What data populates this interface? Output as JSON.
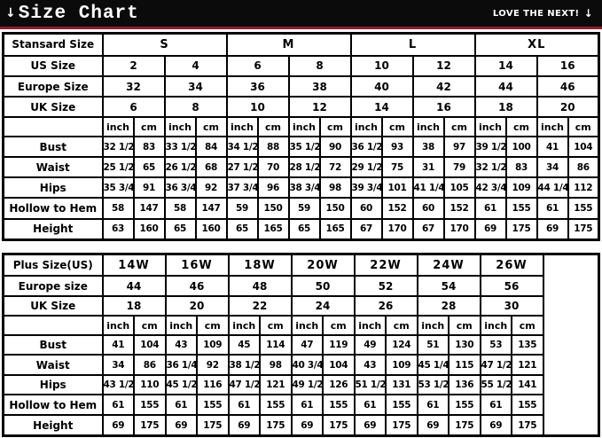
{
  "header": {
    "title": "Size Chart",
    "left_icon": "↓",
    "tagline": "LOVE THE NEXT!",
    "tagline_icon": "↓",
    "bar_color": "#0b0b0b",
    "accent_color": "#8e1c2e"
  },
  "chart_data": [
    {
      "type": "table",
      "name": "standard-size-chart",
      "corner_label": "Stansard Size",
      "size_groups": [
        "S",
        "M",
        "L",
        "XL"
      ],
      "header_rows": [
        {
          "label": "US Size",
          "values": [
            "2",
            "4",
            "6",
            "8",
            "10",
            "12",
            "14",
            "16"
          ]
        },
        {
          "label": "Europe Size",
          "values": [
            "32",
            "34",
            "36",
            "38",
            "40",
            "42",
            "44",
            "46"
          ]
        },
        {
          "label": "UK Size",
          "values": [
            "6",
            "8",
            "10",
            "12",
            "14",
            "16",
            "18",
            "20"
          ]
        }
      ],
      "unit_labels": [
        "inch",
        "cm"
      ],
      "measurement_rows": [
        {
          "label": "Bust",
          "values": [
            "32 1/2",
            "83",
            "33 1/2",
            "84",
            "34 1/2",
            "88",
            "35 1/2",
            "90",
            "36 1/2",
            "93",
            "38",
            "97",
            "39 1/2",
            "100",
            "41",
            "104"
          ]
        },
        {
          "label": "Waist",
          "values": [
            "25 1/2",
            "65",
            "26 1/2",
            "68",
            "27 1/2",
            "70",
            "28 1/2",
            "72",
            "29 1/2",
            "75",
            "31",
            "79",
            "32 1/2",
            "83",
            "34",
            "86"
          ]
        },
        {
          "label": "Hips",
          "values": [
            "35 3/4",
            "91",
            "36 3/4",
            "92",
            "37 3/4",
            "96",
            "38 3/4",
            "98",
            "39 3/4",
            "101",
            "41 1/4",
            "105",
            "42 3/4",
            "109",
            "44 1/4",
            "112"
          ]
        },
        {
          "label": "Hollow to Hem",
          "values": [
            "58",
            "147",
            "58",
            "147",
            "59",
            "150",
            "59",
            "150",
            "60",
            "152",
            "60",
            "152",
            "61",
            "155",
            "61",
            "155"
          ]
        },
        {
          "label": "Height",
          "values": [
            "63",
            "160",
            "65",
            "160",
            "65",
            "165",
            "65",
            "165",
            "67",
            "170",
            "67",
            "170",
            "69",
            "175",
            "69",
            "175"
          ]
        }
      ],
      "has_trailing_empty_column": false
    },
    {
      "type": "table",
      "name": "plus-size-chart",
      "corner_label": "Plus Size(US)",
      "size_groups": [
        "14W",
        "16W",
        "18W",
        "20W",
        "22W",
        "24W",
        "26W"
      ],
      "header_rows": [
        {
          "label": "Europe size",
          "values": [
            "44",
            "46",
            "48",
            "50",
            "52",
            "54",
            "56"
          ]
        },
        {
          "label": "UK Size",
          "values": [
            "18",
            "20",
            "22",
            "24",
            "26",
            "28",
            "30"
          ]
        }
      ],
      "unit_labels": [
        "inch",
        "cm"
      ],
      "measurement_rows": [
        {
          "label": "Bust",
          "values": [
            "41",
            "104",
            "43",
            "109",
            "45",
            "114",
            "47",
            "119",
            "49",
            "124",
            "51",
            "130",
            "53",
            "135"
          ]
        },
        {
          "label": "Waist",
          "values": [
            "34",
            "86",
            "36 1/4",
            "92",
            "38 1/2",
            "98",
            "40 3/4",
            "104",
            "43",
            "109",
            "45 1/4",
            "115",
            "47 1/2",
            "121"
          ]
        },
        {
          "label": "Hips",
          "values": [
            "43 1/2",
            "110",
            "45 1/2",
            "116",
            "47 1/2",
            "121",
            "49 1/2",
            "126",
            "51 1/2",
            "131",
            "53 1/2",
            "136",
            "55 1/2",
            "141"
          ]
        },
        {
          "label": "Hollow to Hem",
          "values": [
            "61",
            "155",
            "61",
            "155",
            "61",
            "155",
            "61",
            "155",
            "61",
            "155",
            "61",
            "155",
            "61",
            "155"
          ]
        },
        {
          "label": "Height",
          "values": [
            "69",
            "175",
            "69",
            "175",
            "69",
            "175",
            "69",
            "175",
            "69",
            "175",
            "69",
            "175",
            "69",
            "175"
          ]
        }
      ],
      "has_trailing_empty_column": true
    }
  ]
}
